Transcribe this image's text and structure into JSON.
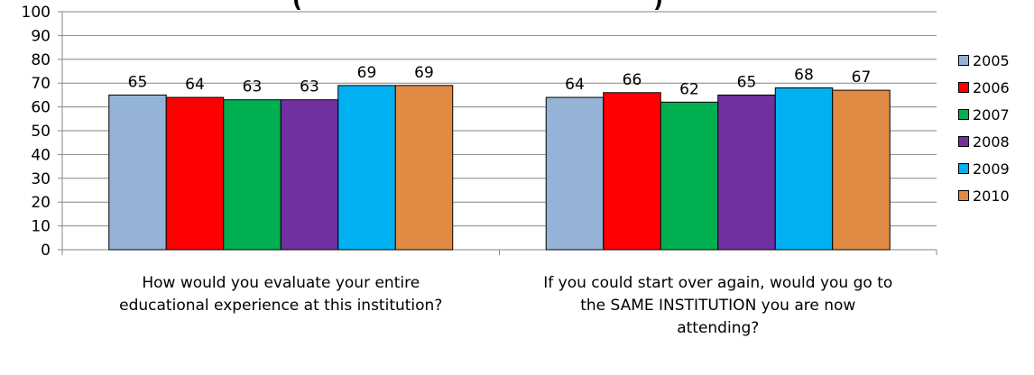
{
  "chart_data": {
    "type": "bar",
    "title": "",
    "title_fragments": [
      "(",
      ")"
    ],
    "categories": [
      [
        "How would you evaluate your entire",
        "educational experience at this institution?"
      ],
      [
        "If you could start over again, would you go to",
        "the SAME INSTITUTION  you are now",
        "attending?"
      ]
    ],
    "series": [
      {
        "name": "2005",
        "color": "#95B3D7",
        "values": [
          65,
          64
        ]
      },
      {
        "name": "2006",
        "color": "#FF0000",
        "values": [
          64,
          66
        ]
      },
      {
        "name": "2007",
        "color": "#00B050",
        "values": [
          63,
          62
        ]
      },
      {
        "name": "2008",
        "color": "#7030A0",
        "values": [
          63,
          65
        ]
      },
      {
        "name": "2009",
        "color": "#00B0F0",
        "values": [
          69,
          68
        ]
      },
      {
        "name": "2010",
        "color": "#E08A43",
        "values": [
          69,
          67
        ]
      }
    ],
    "ylim": [
      0,
      100
    ],
    "yticks": [
      0,
      10,
      20,
      30,
      40,
      50,
      60,
      70,
      80,
      90,
      100
    ],
    "grid": true,
    "legend_position": "right",
    "data_labels": true
  }
}
